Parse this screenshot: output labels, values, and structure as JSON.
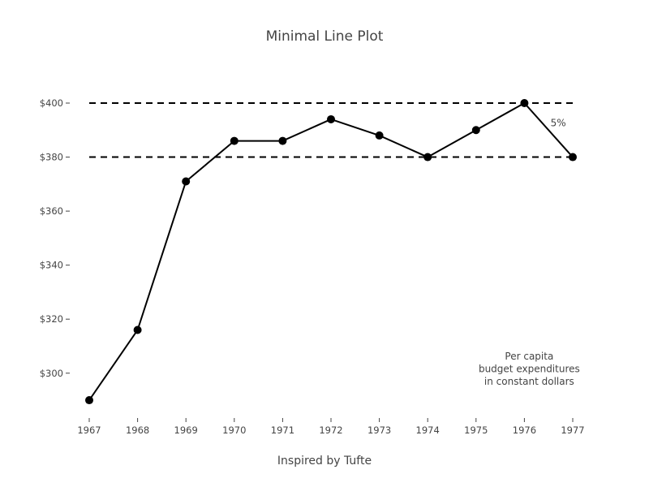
{
  "chart_data": {
    "type": "line",
    "title": "Minimal Line Plot",
    "xlabel": "Inspired by Tufte",
    "ylabel": "",
    "x": [
      1967,
      1968,
      1969,
      1970,
      1971,
      1972,
      1973,
      1974,
      1975,
      1976,
      1977
    ],
    "series": [
      {
        "values": [
          290,
          316,
          371,
          386,
          386,
          394,
          388,
          380,
          390,
          400,
          380
        ]
      }
    ],
    "xlim": [
      1967,
      1977
    ],
    "ylim": [
      284,
      400
    ],
    "x_ticks": [
      1967,
      1968,
      1969,
      1970,
      1971,
      1972,
      1973,
      1974,
      1975,
      1976,
      1977
    ],
    "y_ticks": [
      {
        "value": 300,
        "label": "$300"
      },
      {
        "value": 320,
        "label": "$320"
      },
      {
        "value": 340,
        "label": "$340"
      },
      {
        "value": 360,
        "label": "$360"
      },
      {
        "value": 380,
        "label": "$380"
      },
      {
        "value": 400,
        "label": "$400"
      }
    ],
    "reference_lines": [
      {
        "y": 400,
        "style": "dashed"
      },
      {
        "y": 380,
        "style": "dashed"
      }
    ],
    "annotations": [
      {
        "text": "5%",
        "x": 1976.7,
        "y": 391.5
      },
      {
        "lines": [
          "Per capita",
          "budget expenditures",
          "in constant dollars"
        ],
        "x": 1976.1,
        "y": 305
      }
    ],
    "grid": false,
    "line_color": "#000000"
  }
}
